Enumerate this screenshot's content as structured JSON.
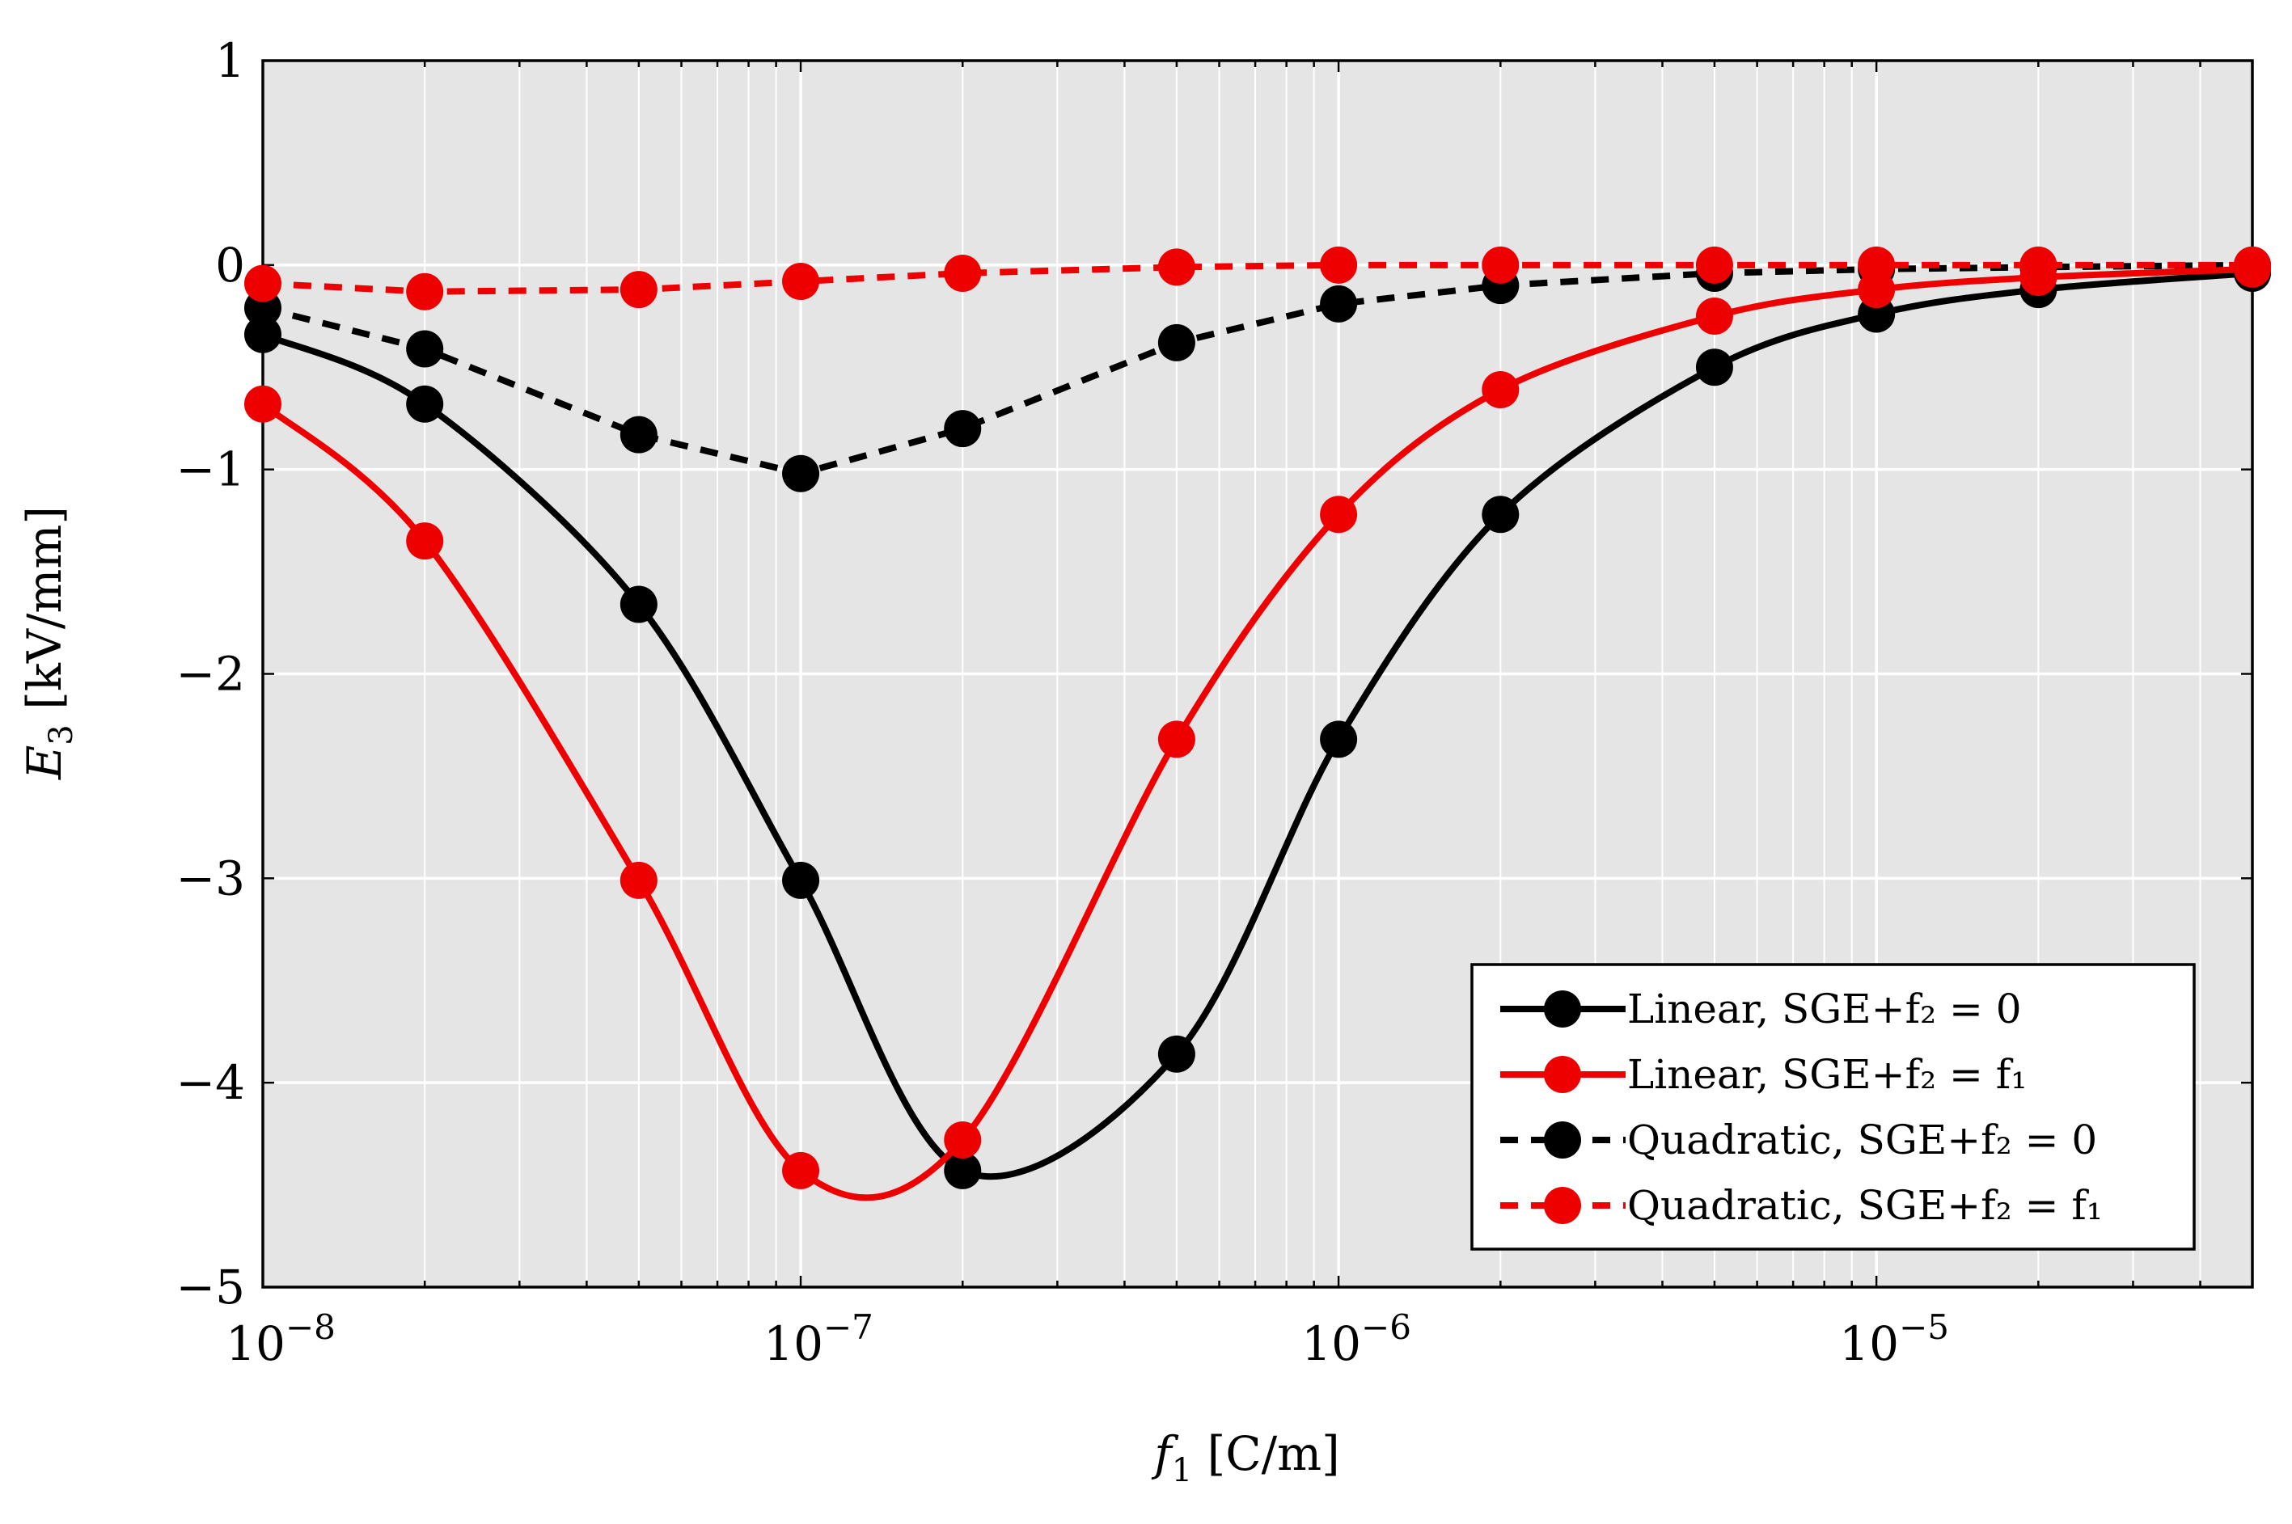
{
  "chart_data": {
    "type": "line",
    "title": "",
    "xlabel": "f1 [C/m]",
    "ylabel": "E3 [kV/mm]",
    "xscale": "log",
    "xlim": [
      1e-08,
      5e-05
    ],
    "ylim": [
      -5,
      1
    ],
    "grid": true,
    "legend_position": "bottom-right",
    "x_tick_labels": [
      {
        "value": 1e-08,
        "base": "10",
        "exp": "−8"
      },
      {
        "value": 1e-07,
        "base": "10",
        "exp": "−7"
      },
      {
        "value": 1e-06,
        "base": "10",
        "exp": "−6"
      },
      {
        "value": 1e-05,
        "base": "10",
        "exp": "−5"
      }
    ],
    "y_tick_labels": [
      {
        "value": 1,
        "label": "1"
      },
      {
        "value": 0,
        "label": "0"
      },
      {
        "value": -1,
        "label": "−1"
      },
      {
        "value": -2,
        "label": "−2"
      },
      {
        "value": -3,
        "label": "−3"
      },
      {
        "value": -4,
        "label": "−4"
      },
      {
        "value": -5,
        "label": "−5"
      }
    ],
    "x": [
      1e-08,
      2e-08,
      5e-08,
      1e-07,
      2e-07,
      5e-07,
      1e-06,
      2e-06,
      5e-06,
      1e-05,
      2e-05,
      5e-05
    ],
    "series": [
      {
        "name": "Linear, SGE+f2 = 0",
        "legend_text": "Linear, SGE+f₂ = 0",
        "color": "#000000",
        "dashed": false,
        "smooth": true,
        "values": [
          -0.34,
          -0.68,
          -1.66,
          -3.01,
          -4.43,
          -3.86,
          -2.32,
          -1.22,
          -0.5,
          -0.24,
          -0.12,
          -0.04
        ]
      },
      {
        "name": "Linear, SGE+f2 = f1",
        "legend_text": "Linear, SGE+f₂ = f₁",
        "color": "#ee0000",
        "dashed": false,
        "smooth": true,
        "values": [
          -0.68,
          -1.35,
          -3.01,
          -4.43,
          -4.28,
          -2.32,
          -1.22,
          -0.61,
          -0.25,
          -0.12,
          -0.06,
          -0.02
        ]
      },
      {
        "name": "Quadratic, SGE+f2 = 0",
        "legend_text": "Quadratic, SGE+f₂ = 0",
        "color": "#000000",
        "dashed": true,
        "smooth": false,
        "values": [
          -0.21,
          -0.41,
          -0.83,
          -1.02,
          -0.8,
          -0.38,
          -0.19,
          -0.1,
          -0.04,
          -0.02,
          -0.01,
          0.0
        ]
      },
      {
        "name": "Quadratic, SGE+f2 = f1",
        "legend_text": "Quadratic, SGE+f₂ = f₁",
        "color": "#ee0000",
        "dashed": true,
        "smooth": false,
        "values": [
          -0.09,
          -0.13,
          -0.12,
          -0.08,
          -0.04,
          -0.01,
          0.0,
          0.0,
          0.0,
          0.0,
          0.0,
          0.0
        ]
      }
    ]
  }
}
